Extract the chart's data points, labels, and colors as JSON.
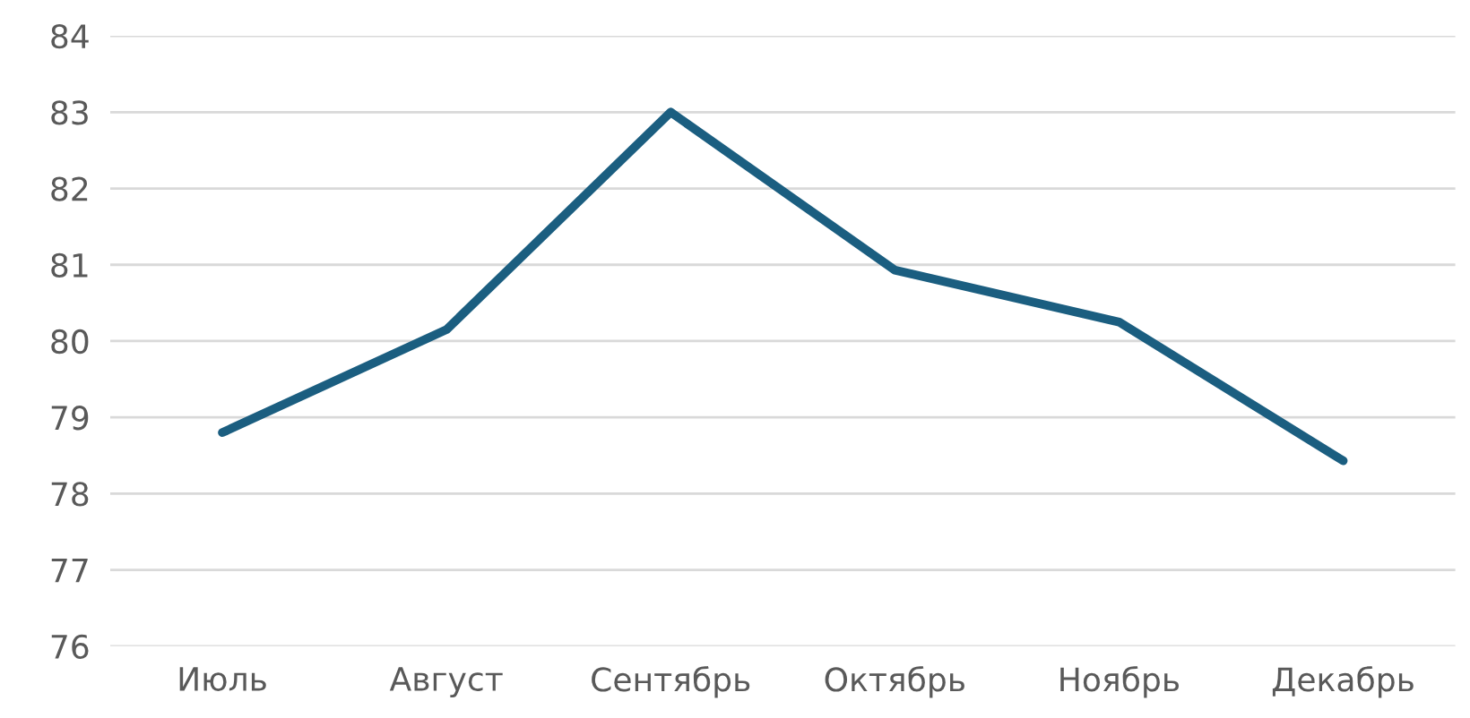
{
  "chart_data": {
    "type": "line",
    "categories": [
      "Июль",
      "Август",
      "Сентябрь",
      "Октябрь",
      "Ноябрь",
      "Декабрь"
    ],
    "series": [
      {
        "color": "#1b5e80",
        "values": [
          78.8,
          80.15,
          83.0,
          80.93,
          80.25,
          78.43
        ]
      }
    ],
    "ylim": [
      76,
      84
    ],
    "yticks": [
      76,
      77,
      78,
      79,
      80,
      81,
      82,
      83,
      84
    ],
    "grid": "y",
    "marker": "none",
    "line_style": "solid"
  }
}
